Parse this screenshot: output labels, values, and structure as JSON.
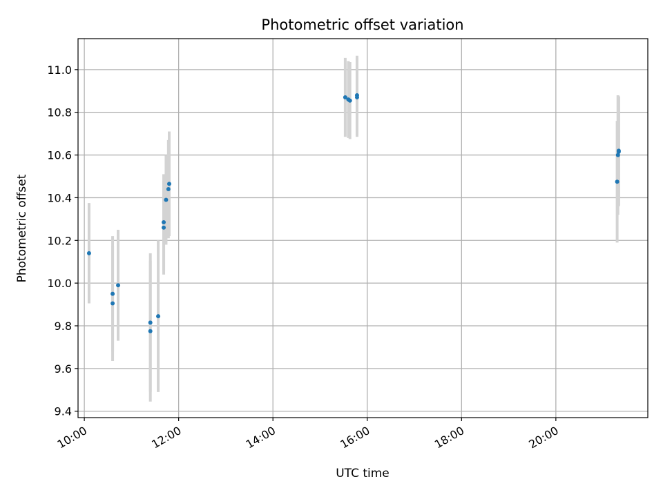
{
  "chart_data": {
    "type": "scatter",
    "title": "Photometric offset variation",
    "xlabel": "UTC time",
    "ylabel": "Photometric offset",
    "x_format": "time HH:MM",
    "xlim": [
      "09:52",
      "21:57"
    ],
    "ylim": [
      9.37,
      11.145
    ],
    "x_ticks": [
      "10:00",
      "12:00",
      "14:00",
      "16:00",
      "18:00",
      "20:00"
    ],
    "y_ticks": [
      9.4,
      9.6,
      9.8,
      10.0,
      10.2,
      10.4,
      10.6,
      10.8,
      11.0
    ],
    "grid": true,
    "legend": "none",
    "colors": {
      "point": "#1f77b4",
      "errorbar": "#d3d3d3",
      "grid": "#b0b0b0"
    },
    "points": [
      {
        "x": "10:06",
        "y": 10.14,
        "yerr": 0.235
      },
      {
        "x": "10:36",
        "y": 9.95,
        "yerr": 0.27
      },
      {
        "x": "10:36",
        "y": 9.905,
        "yerr": 0.27
      },
      {
        "x": "10:43",
        "y": 9.99,
        "yerr": 0.26
      },
      {
        "x": "11:24",
        "y": 9.815,
        "yerr": 0.325
      },
      {
        "x": "11:24",
        "y": 9.775,
        "yerr": 0.33
      },
      {
        "x": "11:34",
        "y": 9.845,
        "yerr": 0.355
      },
      {
        "x": "11:41",
        "y": 10.285,
        "yerr": 0.225
      },
      {
        "x": "11:41",
        "y": 10.26,
        "yerr": 0.22
      },
      {
        "x": "11:44",
        "y": 10.39,
        "yerr": 0.21
      },
      {
        "x": "11:47",
        "y": 10.44,
        "yerr": 0.23
      },
      {
        "x": "11:48",
        "y": 10.465,
        "yerr": 0.245
      },
      {
        "x": "15:32",
        "y": 10.87,
        "yerr": 0.185
      },
      {
        "x": "15:36",
        "y": 10.86,
        "yerr": 0.18
      },
      {
        "x": "15:38",
        "y": 10.855,
        "yerr": 0.18
      },
      {
        "x": "15:47",
        "y": 10.88,
        "yerr": 0.185
      },
      {
        "x": "15:47",
        "y": 10.87,
        "yerr": 0.185
      },
      {
        "x": "21:18",
        "y": 10.475,
        "yerr": 0.285
      },
      {
        "x": "21:19",
        "y": 10.6,
        "yerr": 0.28
      },
      {
        "x": "21:20",
        "y": 10.615,
        "yerr": 0.255
      },
      {
        "x": "21:20",
        "y": 10.62,
        "yerr": 0.255
      }
    ]
  }
}
